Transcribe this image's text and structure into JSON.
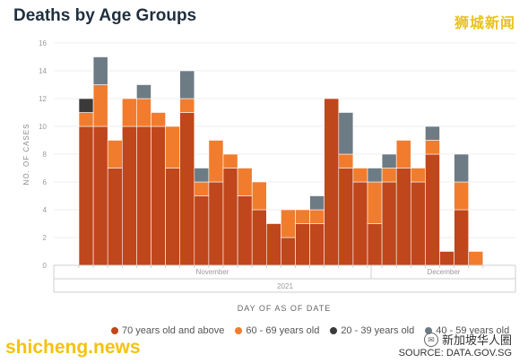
{
  "header": {
    "title": "Deaths by Age Groups",
    "brand": "狮城新闻"
  },
  "watermarks": {
    "left": "shicheng.news",
    "right": "新加坡华人圈"
  },
  "source": "SOURCE: DATA.GOV.SG",
  "colors": {
    "age70plus": "#c0461c",
    "age60_69": "#f17c2e",
    "age20_39": "#3a3a3a",
    "age40_59": "#6d7b84",
    "gridline": "#ececec",
    "axis_text": "#9a9a9a"
  },
  "chart_data": {
    "type": "bar",
    "stacked": true,
    "title": "Deaths by Age Groups",
    "ylabel": "NO. OF CASES",
    "xlabel": "DAY OF AS OF DATE",
    "ylim": [
      0,
      16
    ],
    "yticks": [
      0,
      2,
      4,
      6,
      8,
      10,
      12,
      14,
      16
    ],
    "grid": true,
    "legend_position": "bottom",
    "x_month_labels": [
      "November",
      "December"
    ],
    "x_year_label": "2021",
    "num_days": 28,
    "series": [
      {
        "name": "70 years old and above",
        "color": "#c0461c",
        "values": [
          10,
          10,
          7,
          10,
          10,
          10,
          7,
          11,
          5,
          6,
          7,
          5,
          4,
          3,
          2,
          3,
          3,
          12,
          7,
          6,
          3,
          6,
          7,
          6,
          8,
          1,
          4,
          0
        ]
      },
      {
        "name": "60 - 69 years old",
        "color": "#f17c2e",
        "values": [
          1,
          3,
          2,
          2,
          2,
          1,
          3,
          1,
          1,
          3,
          1,
          2,
          2,
          0,
          2,
          1,
          1,
          0,
          1,
          1,
          3,
          1,
          2,
          1,
          1,
          0,
          2,
          1
        ]
      },
      {
        "name": "20 - 39 years old",
        "color": "#3a3a3a",
        "values": [
          1,
          0,
          0,
          0,
          0,
          0,
          0,
          0,
          0,
          0,
          0,
          0,
          0,
          0,
          0,
          0,
          0,
          0,
          0,
          0,
          0,
          0,
          0,
          0,
          0,
          0,
          0,
          0
        ]
      },
      {
        "name": "40 - 59 years old",
        "color": "#6d7b84",
        "values": [
          0,
          2,
          0,
          0,
          1,
          0,
          0,
          2,
          1,
          0,
          0,
          0,
          0,
          0,
          0,
          0,
          1,
          0,
          3,
          0,
          1,
          1,
          0,
          0,
          1,
          0,
          2,
          0
        ]
      }
    ]
  }
}
